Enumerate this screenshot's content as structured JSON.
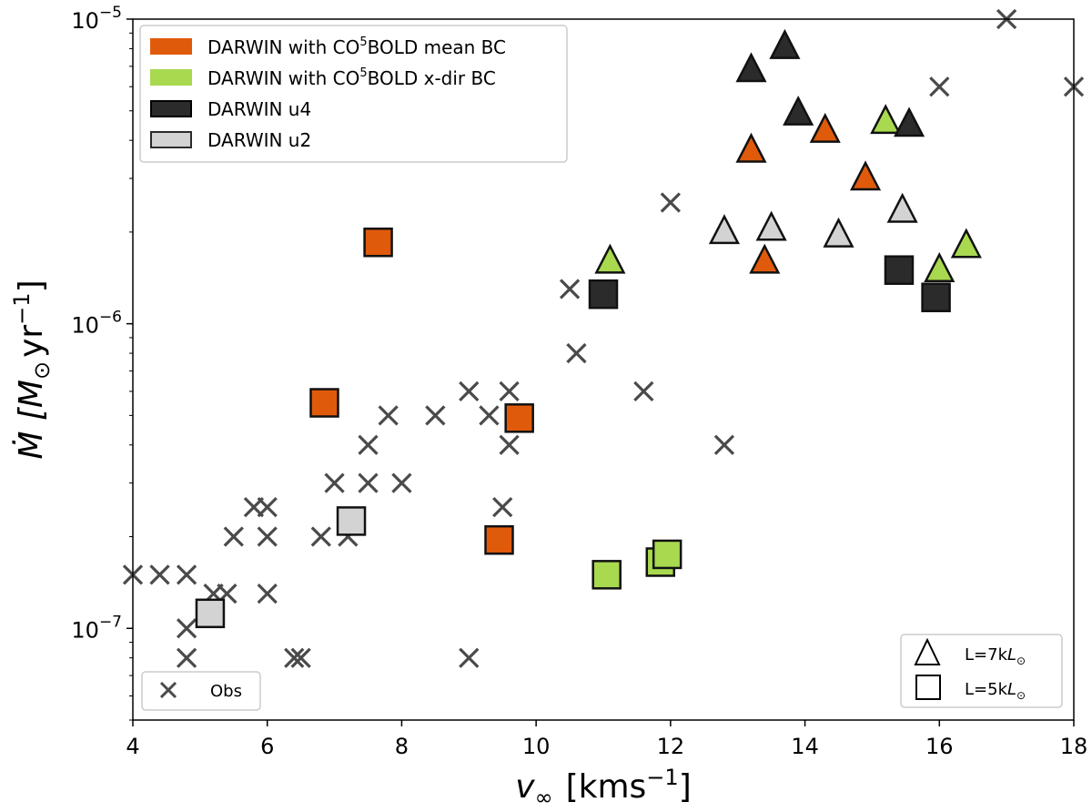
{
  "chart_data": {
    "type": "scatter",
    "xlabel": "v",
    "xlabel_sub": "∞",
    "xlabel_unit": "[kms",
    "xlabel_unit_exp": "−1",
    "xlabel_unit_close": "]",
    "ylabel": "Ṁ [M",
    "ylabel_sub": "⊙",
    "ylabel_unit": "yr",
    "ylabel_unit_exp": "−1",
    "ylabel_unit_close": "]",
    "y_scale": "log",
    "xlim": [
      4,
      18
    ],
    "ylim": [
      5e-08,
      1e-05
    ],
    "x_ticks": [
      4,
      6,
      8,
      10,
      12,
      14,
      16,
      18
    ],
    "x_tick_labels": [
      "4",
      "6",
      "8",
      "10",
      "12",
      "14",
      "16",
      "18"
    ],
    "y_ticks": [
      {
        "value": 1e-07,
        "base": "10",
        "exp": "−7"
      },
      {
        "value": 1e-06,
        "base": "10",
        "exp": "−6"
      },
      {
        "value": 1e-05,
        "base": "10",
        "exp": "−5"
      }
    ],
    "grid": false,
    "legend_series": {
      "placement": "upper-left",
      "entries": [
        {
          "label_pre": "DARWIN with CO",
          "label_sup": "5",
          "label_post": "BOLD mean BC",
          "color": "#e05a0c"
        },
        {
          "label_pre": "DARWIN with CO",
          "label_sup": "5",
          "label_post": "BOLD x-dir BC",
          "color": "#a8d94f"
        },
        {
          "label_pre": "DARWIN u4",
          "label_sup": "",
          "label_post": "",
          "color": "#2b2b2b"
        },
        {
          "label_pre": "DARWIN u2",
          "label_sup": "",
          "label_post": "",
          "color": "#d3d3d3"
        }
      ]
    },
    "legend_markers": {
      "placement": "lower-right",
      "entries": [
        {
          "marker": "triangle",
          "label_pre": "L=7k",
          "label_italic": "L",
          "label_sub": "⊙"
        },
        {
          "marker": "square",
          "label_pre": "L=5k",
          "label_italic": "L",
          "label_sub": "⊙"
        }
      ]
    },
    "legend_obs": {
      "placement": "lower-left",
      "label": "Obs"
    },
    "series": [
      {
        "name": "DARWIN with CO5BOLD mean BC",
        "color": "#e05a0c",
        "triangles": [
          [
            13.2,
            3.7e-06
          ],
          [
            14.3,
            4.3e-06
          ],
          [
            14.9,
            3e-06
          ],
          [
            13.4,
            1.6e-06
          ]
        ],
        "squares": [
          [
            7.65,
            1.85e-06
          ],
          [
            6.85,
            5.5e-07
          ],
          [
            9.75,
            4.9e-07
          ],
          [
            9.45,
            1.95e-07
          ]
        ]
      },
      {
        "name": "DARWIN with CO5BOLD x-dir BC",
        "color": "#a8d94f",
        "triangles": [
          [
            15.2,
            4.6e-06
          ],
          [
            11.1,
            1.6e-06
          ],
          [
            16.0,
            1.5e-06
          ],
          [
            16.4,
            1.8e-06
          ]
        ],
        "squares": [
          [
            11.05,
            1.5e-07
          ],
          [
            11.85,
            1.65e-07
          ],
          [
            11.95,
            1.75e-07
          ]
        ]
      },
      {
        "name": "DARWIN u4",
        "color": "#2b2b2b",
        "triangles": [
          [
            13.7,
            8.1e-06
          ],
          [
            13.2,
            6.8e-06
          ],
          [
            13.9,
            4.9e-06
          ],
          [
            15.55,
            4.5e-06
          ]
        ],
        "squares": [
          [
            11.0,
            1.25e-06
          ],
          [
            15.4,
            1.5e-06
          ],
          [
            15.95,
            1.22e-06
          ]
        ]
      },
      {
        "name": "DARWIN u2",
        "color": "#d3d3d3",
        "triangles": [
          [
            12.8,
            2e-06
          ],
          [
            13.5,
            2.05e-06
          ],
          [
            14.5,
            1.95e-06
          ],
          [
            15.45,
            2.35e-06
          ]
        ],
        "squares": [
          [
            7.25,
            2.25e-07
          ],
          [
            5.15,
            1.12e-07
          ]
        ]
      },
      {
        "name": "Obs",
        "color": "#4a4a4a",
        "marker": "x",
        "points": [
          [
            17.0,
            1e-05
          ],
          [
            18.0,
            6e-06
          ],
          [
            16.0,
            6e-06
          ],
          [
            12.0,
            2.5e-06
          ],
          [
            10.5,
            1.3e-06
          ],
          [
            10.6,
            8e-07
          ],
          [
            11.6,
            6e-07
          ],
          [
            12.8,
            4e-07
          ],
          [
            9.0,
            6e-07
          ],
          [
            9.6,
            6e-07
          ],
          [
            9.3,
            5e-07
          ],
          [
            9.6,
            4e-07
          ],
          [
            8.5,
            5e-07
          ],
          [
            7.8,
            5e-07
          ],
          [
            7.5,
            4e-07
          ],
          [
            7.0,
            3e-07
          ],
          [
            7.5,
            3e-07
          ],
          [
            8.0,
            3e-07
          ],
          [
            5.8,
            2.5e-07
          ],
          [
            6.0,
            2.5e-07
          ],
          [
            9.5,
            2.5e-07
          ],
          [
            5.5,
            2e-07
          ],
          [
            6.0,
            2e-07
          ],
          [
            6.8,
            2e-07
          ],
          [
            7.2,
            2e-07
          ],
          [
            4.0,
            1.5e-07
          ],
          [
            4.4,
            1.5e-07
          ],
          [
            4.8,
            1.5e-07
          ],
          [
            5.2,
            1.3e-07
          ],
          [
            5.4,
            1.3e-07
          ],
          [
            6.0,
            1.3e-07
          ],
          [
            4.8,
            1e-07
          ],
          [
            4.8,
            8e-08
          ],
          [
            6.4,
            8e-08
          ],
          [
            6.5,
            8e-08
          ],
          [
            9.0,
            8e-08
          ]
        ]
      }
    ]
  }
}
